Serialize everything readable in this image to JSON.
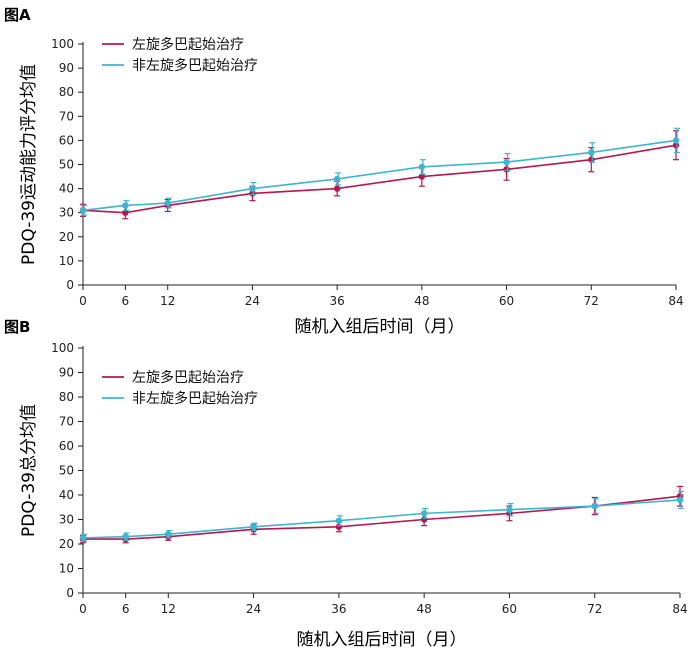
{
  "chart_data": [
    {
      "panel_label": "图A",
      "type": "line",
      "x": [
        0,
        6,
        12,
        24,
        36,
        48,
        60,
        72,
        84
      ],
      "xlabel": "随机入组后时间（月）",
      "ylabel": "PDQ-39运动能力评分均值",
      "xlim": [
        0,
        84
      ],
      "ylim": [
        0,
        100
      ],
      "xticks": [
        "0",
        "6",
        "12",
        "24",
        "36",
        "48",
        "60",
        "72",
        "84"
      ],
      "yticks": [
        "0",
        "10",
        "20",
        "30",
        "40",
        "50",
        "60",
        "70",
        "80",
        "90",
        "100"
      ],
      "legend_position": "top-left",
      "series": [
        {
          "name": "左旋多巴起始治疗",
          "color": "#b5174e",
          "values": [
            31,
            30,
            33,
            38,
            40,
            45,
            48,
            52,
            58
          ],
          "err": [
            2.5,
            2.5,
            2.5,
            3,
            3,
            4,
            4.5,
            5,
            6
          ]
        },
        {
          "name": "非左旋多巴起始治疗",
          "color": "#3db5cf",
          "values": [
            31,
            33,
            34,
            40,
            44,
            49,
            51,
            55,
            60
          ],
          "err": [
            2,
            2,
            2,
            2.5,
            2.5,
            3,
            3.5,
            4,
            5
          ]
        }
      ]
    },
    {
      "panel_label": "图B",
      "type": "line",
      "x": [
        0,
        6,
        12,
        24,
        36,
        48,
        60,
        72,
        84
      ],
      "xlabel": "随机入组后时间（月）",
      "ylabel": "PDQ-39总分均值",
      "xlim": [
        0,
        84
      ],
      "ylim": [
        0,
        100
      ],
      "xticks": [
        "0",
        "6",
        "12",
        "24",
        "36",
        "48",
        "60",
        "72",
        "84"
      ],
      "yticks": [
        "0",
        "10",
        "20",
        "30",
        "40",
        "50",
        "60",
        "70",
        "80",
        "90",
        "100"
      ],
      "legend_position": "top-left",
      "series": [
        {
          "name": "左旋多巴起始治疗",
          "color": "#b5174e",
          "values": [
            22,
            22,
            23,
            26,
            27,
            30,
            32.5,
            35.5,
            39.5
          ],
          "err": [
            1.5,
            1.5,
            1.5,
            2,
            2,
            2.5,
            3,
            3.5,
            4
          ]
        },
        {
          "name": "非左旋多巴起始治疗",
          "color": "#3db5cf",
          "values": [
            22.5,
            23,
            24,
            27,
            29.5,
            32.5,
            34,
            35.5,
            38
          ],
          "err": [
            1.5,
            1.5,
            1.5,
            1.5,
            2,
            2,
            2.5,
            3,
            3.5
          ]
        }
      ]
    }
  ]
}
